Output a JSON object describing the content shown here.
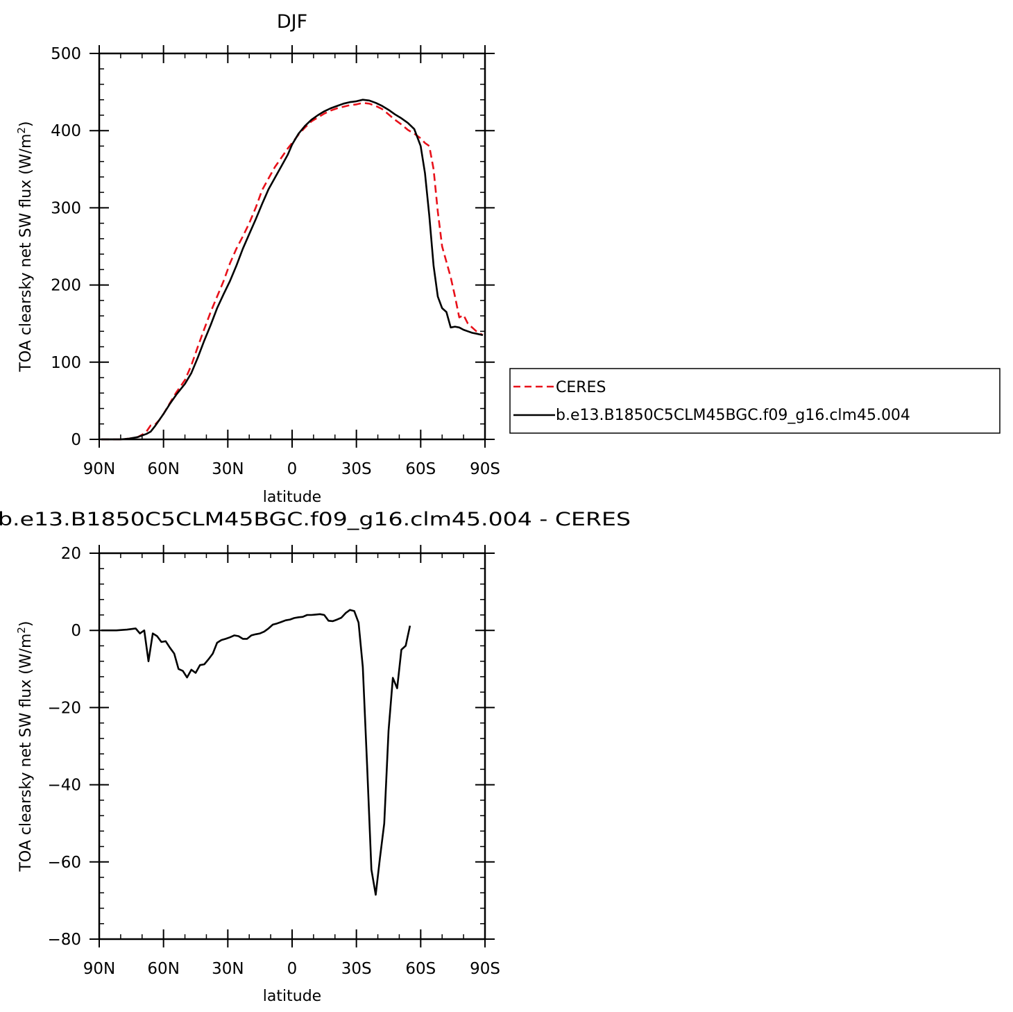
{
  "chart_data": [
    {
      "type": "line",
      "title": "DJF",
      "xlabel": "latitude",
      "ylabel_main": "TOA clearsky net SW flux (W/m",
      "ylabel_sup": "2",
      "ylabel_end": ")",
      "xlim": [
        90,
        -90
      ],
      "ylim": [
        0,
        500
      ],
      "x_ticks": [
        {
          "value": 90,
          "label": "90N"
        },
        {
          "value": 60,
          "label": "60N"
        },
        {
          "value": 30,
          "label": "30N"
        },
        {
          "value": 0,
          "label": "0"
        },
        {
          "value": -30,
          "label": "30S"
        },
        {
          "value": -60,
          "label": "60S"
        },
        {
          "value": -90,
          "label": "90S"
        }
      ],
      "y_ticks": [
        {
          "value": 0,
          "label": "0"
        },
        {
          "value": 100,
          "label": "100"
        },
        {
          "value": 200,
          "label": "200"
        },
        {
          "value": 300,
          "label": "300"
        },
        {
          "value": 400,
          "label": "400"
        },
        {
          "value": 500,
          "label": "500"
        }
      ],
      "legend": {
        "placement": "right",
        "entries": [
          {
            "name": "CERES",
            "style": "dashed",
            "color": "#e8111a"
          },
          {
            "name": "b.e13.B1850C5CLM45BGC.f09_g16.clm45.004",
            "style": "solid",
            "color": "#000000"
          }
        ]
      },
      "series": [
        {
          "name": "CERES",
          "color": "#e8111a",
          "style": "dashed",
          "points": [
            [
              89,
              0
            ],
            [
              84,
              0
            ],
            [
              80,
              0
            ],
            [
              76,
              1
            ],
            [
              72,
              3
            ],
            [
              70,
              6
            ],
            [
              68,
              10
            ],
            [
              66,
              18
            ],
            [
              64,
              19
            ],
            [
              62,
              25
            ],
            [
              60,
              33
            ],
            [
              57,
              47
            ],
            [
              54,
              61
            ],
            [
              50,
              77
            ],
            [
              47,
              96
            ],
            [
              44,
              120
            ],
            [
              41,
              143
            ],
            [
              38,
              165
            ],
            [
              35,
              185
            ],
            [
              32,
              205
            ],
            [
              29,
              228
            ],
            [
              26,
              247
            ],
            [
              23,
              263
            ],
            [
              20,
              280
            ],
            [
              17,
              300
            ],
            [
              14,
              323
            ],
            [
              11,
              338
            ],
            [
              8,
              353
            ],
            [
              5,
              365
            ],
            [
              2,
              377
            ],
            [
              0,
              384
            ],
            [
              -3,
              395
            ],
            [
              -6,
              404
            ],
            [
              -9,
              412
            ],
            [
              -12,
              417
            ],
            [
              -15,
              422
            ],
            [
              -18,
              426
            ],
            [
              -21,
              429
            ],
            [
              -24,
              431
            ],
            [
              -27,
              433
            ],
            [
              -30,
              434
            ],
            [
              -33,
              436
            ],
            [
              -36,
              435
            ],
            [
              -39,
              432
            ],
            [
              -42,
              428
            ],
            [
              -45,
              421
            ],
            [
              -48,
              414
            ],
            [
              -51,
              408
            ],
            [
              -54,
              401
            ],
            [
              -57,
              396
            ],
            [
              -60,
              390
            ],
            [
              -62,
              384
            ],
            [
              -64,
              380
            ],
            [
              -66,
              350
            ],
            [
              -68,
              295
            ],
            [
              -70,
              250
            ],
            [
              -72,
              230
            ],
            [
              -74,
              210
            ],
            [
              -76,
              185
            ],
            [
              -78,
              158
            ],
            [
              -80,
              161
            ],
            [
              -82,
              150
            ],
            [
              -84,
              145
            ],
            [
              -86,
              140
            ],
            [
              -89,
              135
            ]
          ]
        },
        {
          "name": "b.e13.B1850C5CLM45BGC.f09_g16.clm45.004",
          "color": "#000000",
          "style": "solid",
          "points": [
            [
              89,
              0
            ],
            [
              84,
              0
            ],
            [
              80,
              0
            ],
            [
              76,
              1
            ],
            [
              72,
              3
            ],
            [
              70,
              5
            ],
            [
              68,
              7
            ],
            [
              66,
              10
            ],
            [
              64,
              17
            ],
            [
              62,
              25
            ],
            [
              60,
              33
            ],
            [
              57,
              46
            ],
            [
              54,
              58
            ],
            [
              50,
              72
            ],
            [
              47,
              86
            ],
            [
              44,
              106
            ],
            [
              41,
              128
            ],
            [
              38,
              148
            ],
            [
              35,
              170
            ],
            [
              32,
              188
            ],
            [
              29,
              205
            ],
            [
              26,
              225
            ],
            [
              23,
              247
            ],
            [
              20,
              266
            ],
            [
              17,
              285
            ],
            [
              14,
              305
            ],
            [
              11,
              324
            ],
            [
              8,
              339
            ],
            [
              5,
              354
            ],
            [
              2,
              369
            ],
            [
              0,
              382
            ],
            [
              -3,
              396
            ],
            [
              -6,
              406
            ],
            [
              -9,
              414
            ],
            [
              -12,
              420
            ],
            [
              -15,
              425
            ],
            [
              -18,
              429
            ],
            [
              -21,
              432
            ],
            [
              -24,
              435
            ],
            [
              -27,
              437
            ],
            [
              -30,
              438
            ],
            [
              -33,
              440
            ],
            [
              -36,
              439
            ],
            [
              -39,
              436
            ],
            [
              -42,
              432
            ],
            [
              -45,
              427
            ],
            [
              -48,
              421
            ],
            [
              -51,
              416
            ],
            [
              -54,
              410
            ],
            [
              -57,
              402
            ],
            [
              -60,
              380
            ],
            [
              -62,
              345
            ],
            [
              -64,
              290
            ],
            [
              -66,
              225
            ],
            [
              -68,
              185
            ],
            [
              -70,
              170
            ],
            [
              -72,
              165
            ],
            [
              -74,
              145
            ],
            [
              -76,
              146
            ],
            [
              -78,
              145
            ],
            [
              -80,
              142
            ],
            [
              -82,
              140
            ],
            [
              -84,
              138
            ],
            [
              -86,
              137
            ],
            [
              -89,
              135
            ]
          ]
        }
      ]
    },
    {
      "type": "line",
      "title": "b.e13.B1850C5CLM45BGC.f09_g16.clm45.004 - CERES",
      "xlabel": "latitude",
      "ylabel_main": "TOA clearsky net SW flux (W/m",
      "ylabel_sup": "2",
      "ylabel_end": ")",
      "xlim": [
        90,
        -90
      ],
      "ylim": [
        -80,
        20
      ],
      "x_ticks": [
        {
          "value": 90,
          "label": "90N"
        },
        {
          "value": 60,
          "label": "60N"
        },
        {
          "value": 30,
          "label": "30N"
        },
        {
          "value": 0,
          "label": "0"
        },
        {
          "value": -30,
          "label": "30S"
        },
        {
          "value": -60,
          "label": "60S"
        },
        {
          "value": -90,
          "label": "90S"
        }
      ],
      "y_ticks": [
        {
          "value": -80,
          "label": "−80"
        },
        {
          "value": -60,
          "label": "−60"
        },
        {
          "value": -40,
          "label": "−40"
        },
        {
          "value": -20,
          "label": "−20"
        },
        {
          "value": 0,
          "label": "0"
        },
        {
          "value": 20,
          "label": "20"
        }
      ],
      "series": [
        {
          "color": "#000000",
          "style": "solid",
          "points": [
            [
              89,
              0
            ],
            [
              82,
              0
            ],
            [
              77,
              0.2
            ],
            [
              73,
              0.5
            ],
            [
              71,
              -0.8
            ],
            [
              69,
              0
            ],
            [
              67,
              -8
            ],
            [
              65,
              -0.8
            ],
            [
              63,
              -1.5
            ],
            [
              61,
              -3
            ],
            [
              59,
              -2.8
            ],
            [
              57,
              -4.5
            ],
            [
              55,
              -6
            ],
            [
              53,
              -10
            ],
            [
              51,
              -10.5
            ],
            [
              49,
              -12.2
            ],
            [
              47,
              -10.2
            ],
            [
              45,
              -11
            ],
            [
              43,
              -9
            ],
            [
              41,
              -8.8
            ],
            [
              39,
              -7.5
            ],
            [
              37,
              -6
            ],
            [
              35,
              -3.2
            ],
            [
              33,
              -2.5
            ],
            [
              31,
              -2.2
            ],
            [
              29,
              -1.8
            ],
            [
              27,
              -1.3
            ],
            [
              25,
              -1.5
            ],
            [
              23,
              -2.2
            ],
            [
              21,
              -2.2
            ],
            [
              19,
              -1.3
            ],
            [
              17,
              -1
            ],
            [
              15,
              -0.8
            ],
            [
              13,
              -0.3
            ],
            [
              11,
              0.5
            ],
            [
              9,
              1.5
            ],
            [
              7,
              1.8
            ],
            [
              5,
              2.2
            ],
            [
              3,
              2.6
            ],
            [
              1,
              2.8
            ],
            [
              -1,
              3.2
            ],
            [
              -3,
              3.4
            ],
            [
              -5,
              3.5
            ],
            [
              -7,
              4
            ],
            [
              -9,
              4
            ],
            [
              -11,
              4.1
            ],
            [
              -13,
              4.2
            ],
            [
              -15,
              4
            ],
            [
              -17,
              2.5
            ],
            [
              -19,
              2.4
            ],
            [
              -21,
              2.8
            ],
            [
              -23,
              3.3
            ],
            [
              -25,
              4.5
            ],
            [
              -27,
              5.3
            ],
            [
              -29,
              5
            ],
            [
              -31,
              2
            ],
            [
              -33,
              -9.5
            ],
            [
              -35,
              -35
            ],
            [
              -37,
              -62
            ],
            [
              -39,
              -68.5
            ],
            [
              -41,
              -59
            ],
            [
              -43,
              -50
            ],
            [
              -45,
              -26
            ],
            [
              -47,
              -12.3
            ],
            [
              -49,
              -15
            ],
            [
              -51,
              -5
            ],
            [
              -53,
              -4
            ],
            [
              -55,
              1.2
            ]
          ]
        }
      ]
    }
  ]
}
